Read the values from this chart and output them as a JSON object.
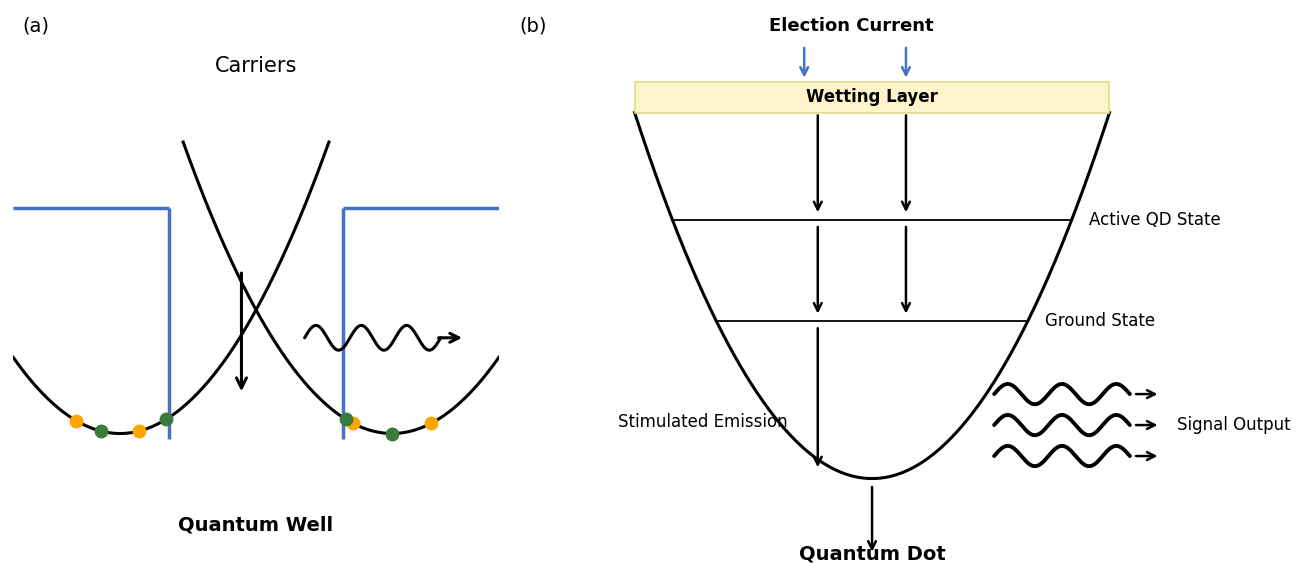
{
  "fig_width": 13.13,
  "fig_height": 5.63,
  "bg_color": "#ffffff",
  "label_a": "(a)",
  "label_b": "(b)",
  "qw_title": "Quantum Well",
  "qd_title": "Quantum Dot",
  "carriers_text": "Carriers",
  "election_current_text": "Election Current",
  "wetting_layer_text": "Wetting Layer",
  "active_qd_text": "Active QD State",
  "ground_state_text": "Ground State",
  "stimulated_text": "Stimulated Emission",
  "signal_output_text": "Signal Output",
  "blue_color": "#4472C4",
  "black_color": "#000000",
  "orange_color": "#FFA500",
  "green_color": "#3A7A3A",
  "wetting_layer_fill": "#FFF3CC",
  "wetting_layer_edge": "#E8D88A"
}
